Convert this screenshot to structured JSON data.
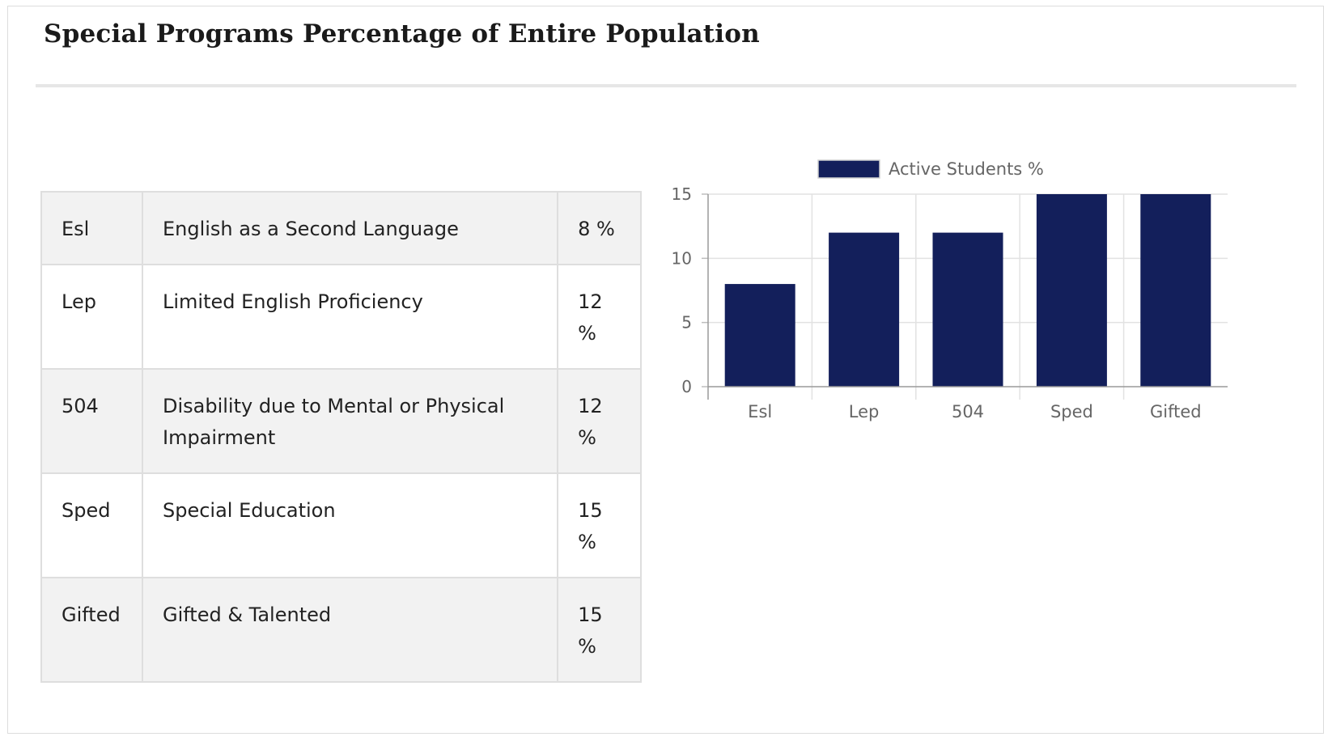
{
  "page": {
    "title": "Special Programs Percentage of Entire Population"
  },
  "table": {
    "rows": [
      {
        "code": "Esl",
        "description": "English as a Second Language",
        "percent": "8 %"
      },
      {
        "code": "Lep",
        "description": "Limited English Proficiency",
        "percent": "12 %"
      },
      {
        "code": "504",
        "description": "Disability due to Mental or Physical Impairment",
        "percent": "12 %"
      },
      {
        "code": "Sped",
        "description": "Special Education",
        "percent": "15 %"
      },
      {
        "code": "Gifted",
        "description": "Gifted & Talented",
        "percent": "15 %"
      }
    ]
  },
  "chart_data": {
    "type": "bar",
    "categories": [
      "Esl",
      "Lep",
      "504",
      "Sped",
      "Gifted"
    ],
    "series": [
      {
        "name": "Active Students %",
        "values": [
          8,
          12,
          12,
          15,
          15
        ],
        "color": "#131f5b"
      }
    ],
    "ylim": [
      0,
      15
    ],
    "yticks": [
      0,
      5,
      10,
      15
    ],
    "grid": true,
    "legend": "top-center"
  }
}
